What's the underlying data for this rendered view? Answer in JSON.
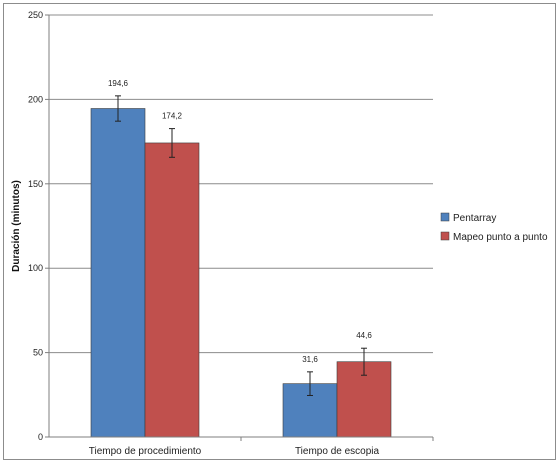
{
  "chart_data": {
    "type": "bar",
    "title": "",
    "xlabel": "",
    "ylabel": "Duración (minutos)",
    "ylim": [
      0,
      250
    ],
    "yticks": [
      0,
      50,
      100,
      150,
      200,
      250
    ],
    "grid": true,
    "legend_position": "right",
    "categories": [
      "Tiempo de procedimiento",
      "Tiempo de escopia"
    ],
    "series": [
      {
        "name": "Pentarray",
        "color": "#4f81bd",
        "values": [
          194.6,
          31.6
        ],
        "labels": [
          "194,6",
          "31,6"
        ],
        "error": [
          7.5,
          7
        ]
      },
      {
        "name": "Mapeo punto a punto",
        "color": "#c0504d",
        "values": [
          174.2,
          44.6
        ],
        "labels": [
          "174,2",
          "44,6"
        ],
        "error": [
          8.5,
          8
        ]
      }
    ]
  }
}
